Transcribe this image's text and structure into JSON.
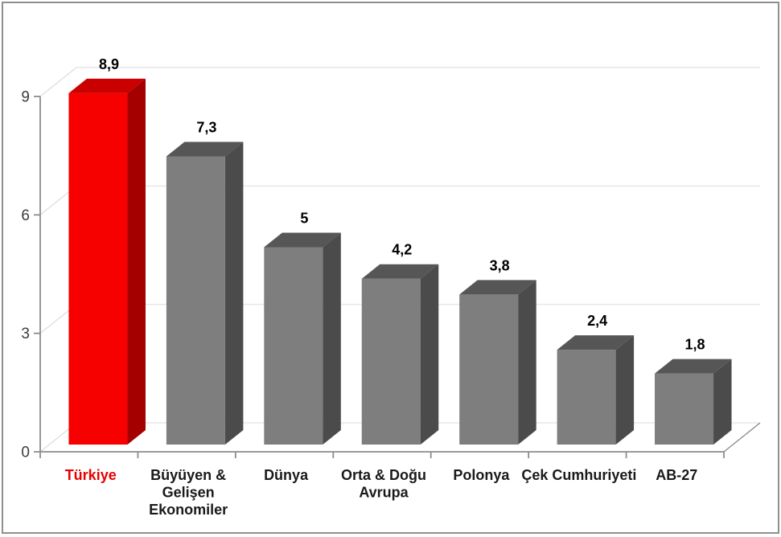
{
  "chart_data": {
    "type": "bar",
    "projection": "3d",
    "title": "",
    "legend": false,
    "grid": true,
    "categories": [
      "Türkiye",
      "Büyüyen & Gelişen Ekonomiler",
      "Dünya",
      "Orta & Doğu Avrupa",
      "Polonya",
      "Çek Cumhuriyeti",
      "AB-27"
    ],
    "category_label_lines": [
      [
        "Türkiye"
      ],
      [
        "Büyüyen &",
        "Gelişen",
        "Ekonomiler"
      ],
      [
        "Dünya"
      ],
      [
        "Orta & Doğu",
        "Avrupa"
      ],
      [
        "Polonya"
      ],
      [
        "Çek Cumhuriyeti"
      ],
      [
        "AB-27"
      ]
    ],
    "values": [
      8.9,
      7.3,
      5,
      4.2,
      3.8,
      2.4,
      1.8
    ],
    "value_labels": [
      "8,9",
      "7,3",
      "5",
      "4,2",
      "3,8",
      "2,4",
      "1,8"
    ],
    "y_axis": {
      "min": 0,
      "max": 9,
      "ticks": [
        0,
        3,
        6,
        9
      ]
    },
    "highlight_index": 0,
    "colors": {
      "background": "#ffffff",
      "border": "#8f8f8f",
      "bar_front": "#7e7e7e",
      "bar_top": "#565656",
      "bar_side": "#4b4b4b",
      "highlight_front": "#f70000",
      "highlight_top": "#ca0000",
      "highlight_side": "#a40000",
      "highlight_label": "#e60000",
      "axis": "#8c8c8c",
      "gridline": "#e7e7e7",
      "wall_edge": "#dcdcdc",
      "value_label": "#000000",
      "category_label": "#1a1a1a",
      "tick_label": "#3c3c3c"
    }
  }
}
